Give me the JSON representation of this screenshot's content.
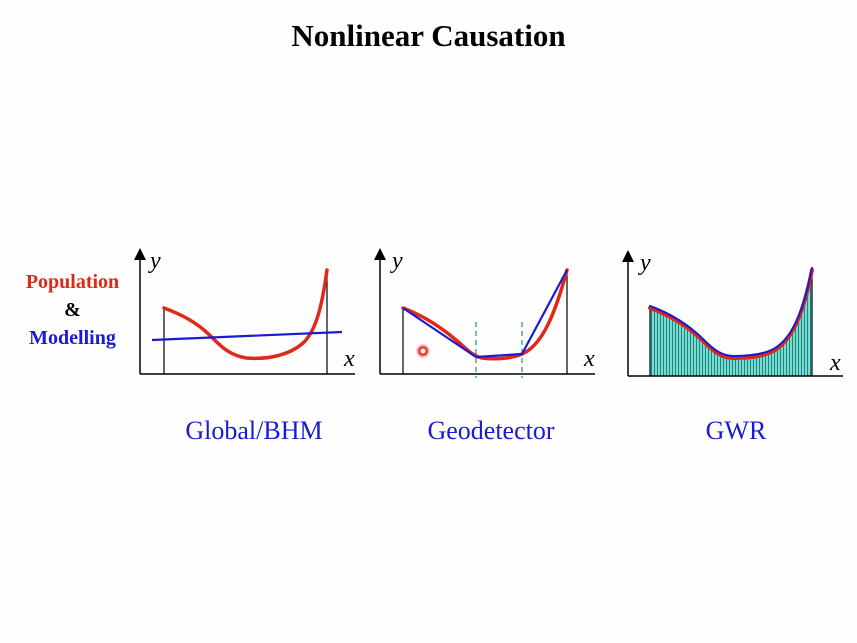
{
  "slide": {
    "title": "Nonlinear Causation",
    "legend": {
      "population": "Population",
      "ampersand": "&",
      "modelling": "Modelling"
    },
    "axis": {
      "y": "y",
      "x": "x"
    },
    "captions": [
      "Global/BHM",
      "Geodetector",
      "GWR"
    ]
  },
  "colors": {
    "population": "#e02818",
    "modelling": "#1a1ad0",
    "gwr_fill": "#2ab5a8",
    "strata_line": "#2aa07a"
  }
}
